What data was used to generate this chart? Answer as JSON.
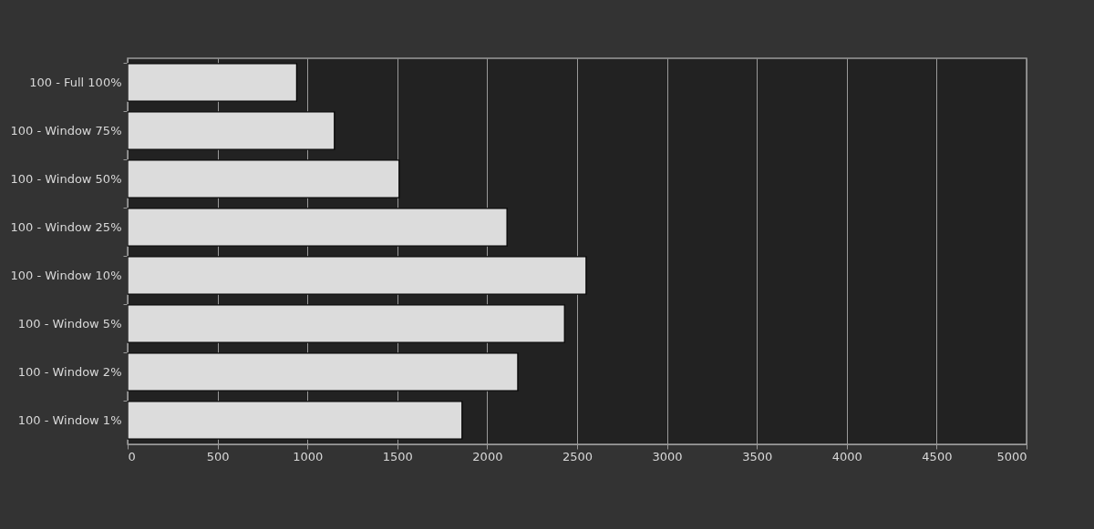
{
  "chart_data": {
    "type": "bar",
    "orientation": "horizontal",
    "categories": [
      "100 - Full  100%",
      "100 - Window 75%",
      "100 - Window 50%",
      "100 - Window 25%",
      "100 - Window 10%",
      "100 - Window  5%",
      "100 - Window  2%",
      "100 - Window  1%"
    ],
    "values": [
      940,
      1150,
      1510,
      2110,
      2550,
      2430,
      2170,
      1860
    ],
    "color": "#dcdcdc",
    "xlim": [
      0,
      5000
    ],
    "xticks": [
      0,
      500,
      1000,
      1500,
      2000,
      2500,
      3000,
      3500,
      4000,
      4500,
      5000
    ],
    "grid": "x"
  }
}
